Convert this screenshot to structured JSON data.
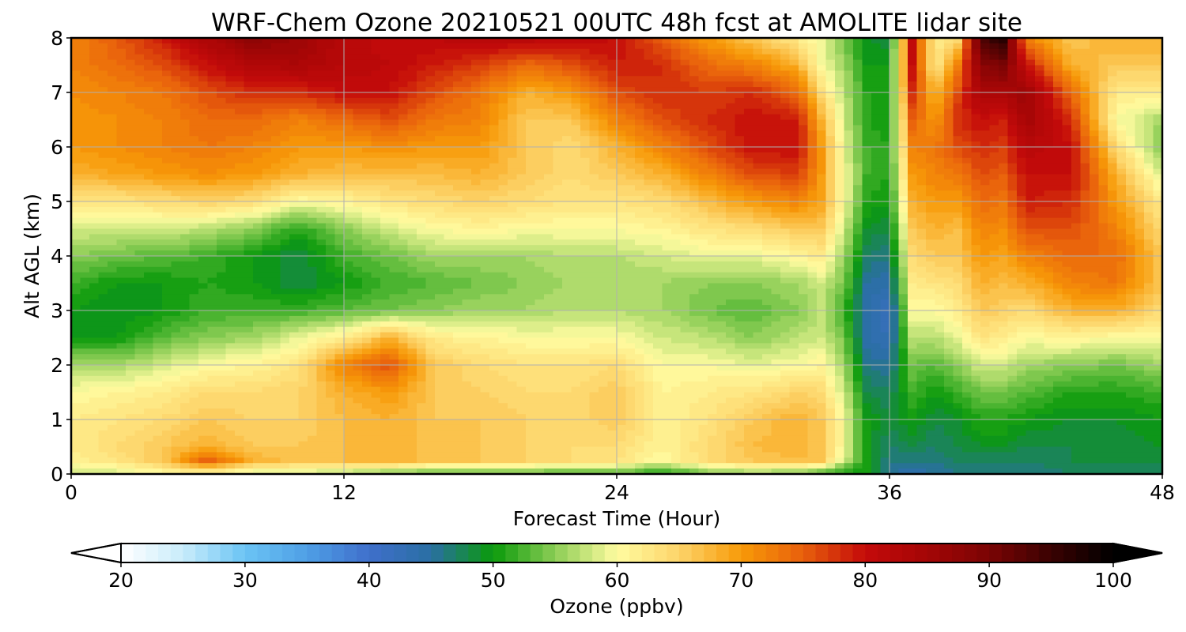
{
  "chart_data": {
    "type": "heatmap",
    "title": "WRF-Chem Ozone  20210521 00UTC 48h fcst at AMOLITE lidar site",
    "xlabel": "Forecast Time (Hour)",
    "ylabel": "Alt AGL (km)",
    "xlim": [
      0,
      48
    ],
    "ylim": [
      0,
      8
    ],
    "x_ticks": [
      "0",
      "12",
      "24",
      "36",
      "48"
    ],
    "y_ticks": [
      "0",
      "1",
      "2",
      "3",
      "4",
      "5",
      "6",
      "7",
      "8"
    ],
    "grid": true,
    "x_hours": [
      0,
      2,
      4,
      6,
      8,
      10,
      12,
      14,
      16,
      18,
      20,
      22,
      24,
      26,
      28,
      30,
      32,
      33,
      34,
      35,
      36,
      37,
      38,
      39,
      40,
      41,
      42,
      44,
      46,
      48
    ],
    "alt_km": [
      0,
      0.25,
      0.5,
      1,
      1.5,
      2,
      2.5,
      3,
      3.5,
      4,
      4.5,
      5,
      5.5,
      6,
      6.5,
      7,
      7.5,
      8
    ],
    "ozone_ppbv": [
      [
        58,
        61,
        62,
        62,
        60,
        56,
        50,
        50,
        52,
        55,
        58,
        63,
        68,
        70,
        70,
        71,
        72,
        72
      ],
      [
        58,
        63,
        64,
        63,
        61,
        56,
        50,
        49,
        50,
        54,
        58,
        63,
        69,
        71,
        71,
        72,
        74,
        75
      ],
      [
        60,
        66,
        66,
        64,
        62,
        58,
        53,
        50,
        50,
        53,
        58,
        64,
        70,
        72,
        72,
        73,
        76,
        79
      ],
      [
        60,
        75,
        68,
        66,
        64,
        60,
        55,
        52,
        51,
        52,
        57,
        65,
        71,
        73,
        74,
        76,
        80,
        84
      ],
      [
        58,
        68,
        66,
        65,
        64,
        61,
        56,
        52,
        50,
        50,
        55,
        64,
        70,
        72,
        74,
        78,
        83,
        88
      ],
      [
        58,
        66,
        66,
        65,
        65,
        63,
        59,
        52,
        48,
        48,
        51,
        60,
        68,
        70,
        72,
        78,
        84,
        86
      ],
      [
        56,
        67,
        67,
        67,
        68,
        72,
        62,
        53,
        50,
        52,
        55,
        61,
        67,
        70,
        74,
        80,
        82,
        82
      ],
      [
        54,
        68,
        68,
        68,
        70,
        76,
        68,
        54,
        52,
        54,
        58,
        63,
        67,
        71,
        76,
        80,
        81,
        80
      ],
      [
        53,
        66,
        66,
        66,
        66,
        66,
        62,
        55,
        53,
        56,
        60,
        64,
        67,
        70,
        73,
        76,
        79,
        81
      ],
      [
        53,
        66,
        66,
        66,
        65,
        64,
        61,
        56,
        54,
        56,
        61,
        65,
        68,
        70,
        72,
        73,
        77,
        82
      ],
      [
        53,
        65,
        65,
        65,
        64,
        63,
        60,
        56,
        55,
        56,
        60,
        64,
        66,
        66,
        66,
        68,
        74,
        82
      ],
      [
        52,
        64,
        64,
        64,
        64,
        63,
        60,
        57,
        56,
        57,
        60,
        63,
        64,
        64,
        66,
        70,
        76,
        81
      ],
      [
        53,
        63,
        64,
        66,
        66,
        64,
        60,
        57,
        56,
        57,
        60,
        63,
        66,
        68,
        72,
        76,
        79,
        80
      ],
      [
        50,
        60,
        61,
        61,
        61,
        60,
        58,
        56,
        56,
        58,
        61,
        64,
        68,
        72,
        76,
        78,
        78,
        75
      ],
      [
        54,
        64,
        64,
        63,
        62,
        60,
        57,
        54,
        55,
        59,
        63,
        67,
        72,
        76,
        78,
        77,
        74,
        70
      ],
      [
        55,
        66,
        67,
        66,
        63,
        59,
        55,
        53,
        55,
        59,
        64,
        70,
        76,
        80,
        80,
        78,
        72,
        66
      ],
      [
        54,
        67,
        68,
        68,
        65,
        60,
        57,
        55,
        56,
        61,
        66,
        72,
        77,
        80,
        79,
        74,
        68,
        62
      ],
      [
        52,
        66,
        66,
        66,
        64,
        61,
        58,
        57,
        58,
        62,
        66,
        69,
        70,
        70,
        68,
        64,
        60,
        59
      ],
      [
        50,
        58,
        60,
        60,
        58,
        56,
        54,
        52,
        54,
        56,
        58,
        60,
        60,
        59,
        58,
        57,
        56,
        54
      ],
      [
        50,
        50,
        50,
        50,
        48,
        46,
        44,
        44,
        45,
        47,
        49,
        51,
        52,
        52,
        51,
        51,
        50,
        49
      ],
      [
        45,
        46,
        47,
        48,
        47,
        45,
        43,
        42,
        44,
        46,
        48,
        50,
        51,
        51,
        50,
        50,
        50,
        48
      ],
      [
        44,
        46,
        48,
        50,
        52,
        54,
        57,
        60,
        62,
        64,
        66,
        68,
        70,
        72,
        75,
        78,
        80,
        80
      ],
      [
        45,
        46,
        47,
        48,
        50,
        53,
        57,
        60,
        63,
        66,
        68,
        70,
        72,
        73,
        70,
        67,
        62,
        62
      ],
      [
        46,
        47,
        48,
        49,
        52,
        55,
        59,
        62,
        64,
        66,
        67,
        70,
        73,
        76,
        78,
        76,
        72,
        64
      ],
      [
        46,
        47,
        49,
        51,
        54,
        58,
        63,
        66,
        68,
        70,
        72,
        74,
        76,
        78,
        80,
        84,
        88,
        94
      ],
      [
        46,
        47,
        49,
        51,
        54,
        58,
        62,
        65,
        67,
        69,
        71,
        73,
        75,
        77,
        79,
        84,
        90,
        97
      ],
      [
        46,
        47,
        48,
        50,
        53,
        56,
        60,
        64,
        68,
        72,
        76,
        79,
        80,
        82,
        85,
        86,
        80,
        72
      ],
      [
        47,
        48,
        48,
        49,
        51,
        55,
        61,
        68,
        72,
        74,
        76,
        78,
        80,
        80,
        78,
        74,
        68,
        66
      ],
      [
        47,
        48,
        48,
        49,
        51,
        54,
        60,
        68,
        73,
        74,
        72,
        70,
        68,
        64,
        60,
        62,
        66,
        68
      ],
      [
        47,
        48,
        49,
        50,
        52,
        56,
        60,
        64,
        66,
        66,
        64,
        62,
        58,
        54,
        56,
        62,
        66,
        68
      ]
    ],
    "colorbar": {
      "label": "Ozone  (ppbv)",
      "min": 20,
      "max": 100,
      "step": 1,
      "ticks": [
        "20",
        "30",
        "40",
        "50",
        "60",
        "70",
        "80",
        "90",
        "100"
      ],
      "extend": "both",
      "under_color": "#ffffff",
      "over_color": "#000000"
    },
    "colormap": [
      [
        20,
        "#ffffff"
      ],
      [
        25,
        "#c8ecfb"
      ],
      [
        30,
        "#6bc4f4"
      ],
      [
        35,
        "#4f9fe6"
      ],
      [
        40,
        "#3f6fcb"
      ],
      [
        45,
        "#2a6fa3"
      ],
      [
        50,
        "#0a9a0a"
      ],
      [
        55,
        "#8ccd55"
      ],
      [
        60,
        "#fffca0"
      ],
      [
        65,
        "#fdd46a"
      ],
      [
        70,
        "#f79a08"
      ],
      [
        75,
        "#e85f0c"
      ],
      [
        80,
        "#c40a0a"
      ],
      [
        85,
        "#a40606"
      ],
      [
        90,
        "#7a0404"
      ],
      [
        95,
        "#3a0202"
      ],
      [
        100,
        "#000000"
      ]
    ]
  }
}
